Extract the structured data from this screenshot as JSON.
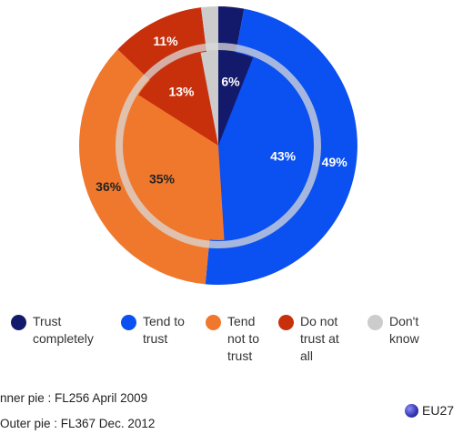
{
  "chart_data": {
    "type": "pie",
    "categories": [
      "Trust completely",
      "Tend to trust",
      "Tend not to trust",
      "Do not trust at all",
      "Don't know"
    ],
    "colors": [
      "#141a6b",
      "#0b50f0",
      "#f0782d",
      "#c8300c",
      "#cccccc"
    ],
    "series": [
      {
        "ring": "outer",
        "values": [
          3,
          49,
          36,
          11,
          2
        ],
        "labels": [
          "",
          "49%",
          "36%",
          "11%",
          ""
        ]
      },
      {
        "ring": "inner",
        "values": [
          6,
          43,
          35,
          13,
          3
        ],
        "labels": [
          "6%",
          "43%",
          "35%",
          "13%",
          ""
        ]
      }
    ]
  },
  "legend": [
    {
      "label": "Trust\ncompletely",
      "color": "#141a6b"
    },
    {
      "label": "Tend to\ntrust",
      "color": "#0b50f0"
    },
    {
      "label": "Tend\nnot to\ntrust",
      "color": "#f0782d"
    },
    {
      "label": "Do not\ntrust at\nall",
      "color": "#c8300c"
    },
    {
      "label": "Don't\nknow",
      "color": "#cccccc"
    }
  ],
  "notes": {
    "inner": "nner pie :  FL256 April 2009",
    "outer": "Outer pie :  FL367 Dec. 2012"
  },
  "region": "EU27"
}
